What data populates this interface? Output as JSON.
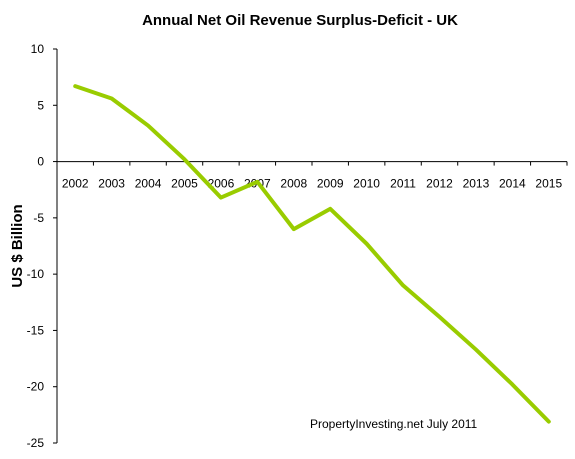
{
  "chart_data": {
    "type": "line",
    "title": "Annual Net Oil Revenue Surplus-Deficit  - UK",
    "ylabel": "US $ Billion",
    "xlabel": "",
    "categories": [
      "2002",
      "2003",
      "2004",
      "2005",
      "2006",
      "2007",
      "2008",
      "2009",
      "2010",
      "2011",
      "2012",
      "2013",
      "2014",
      "2015"
    ],
    "series": [
      {
        "values": [
          6.7,
          5.6,
          3.2,
          0.2,
          -3.2,
          -1.8,
          -6.0,
          -4.2,
          -7.3,
          -11.0,
          -13.8,
          -16.7,
          -19.8,
          -23.1
        ]
      }
    ],
    "ylim": [
      -25,
      10
    ],
    "yticks": [
      10,
      5,
      0,
      -5,
      -10,
      -15,
      -20,
      -25
    ],
    "grid": false,
    "legend": "none",
    "annotation": "PropertyInvesting.net  July 2011",
    "line_color": "#99cc00"
  }
}
